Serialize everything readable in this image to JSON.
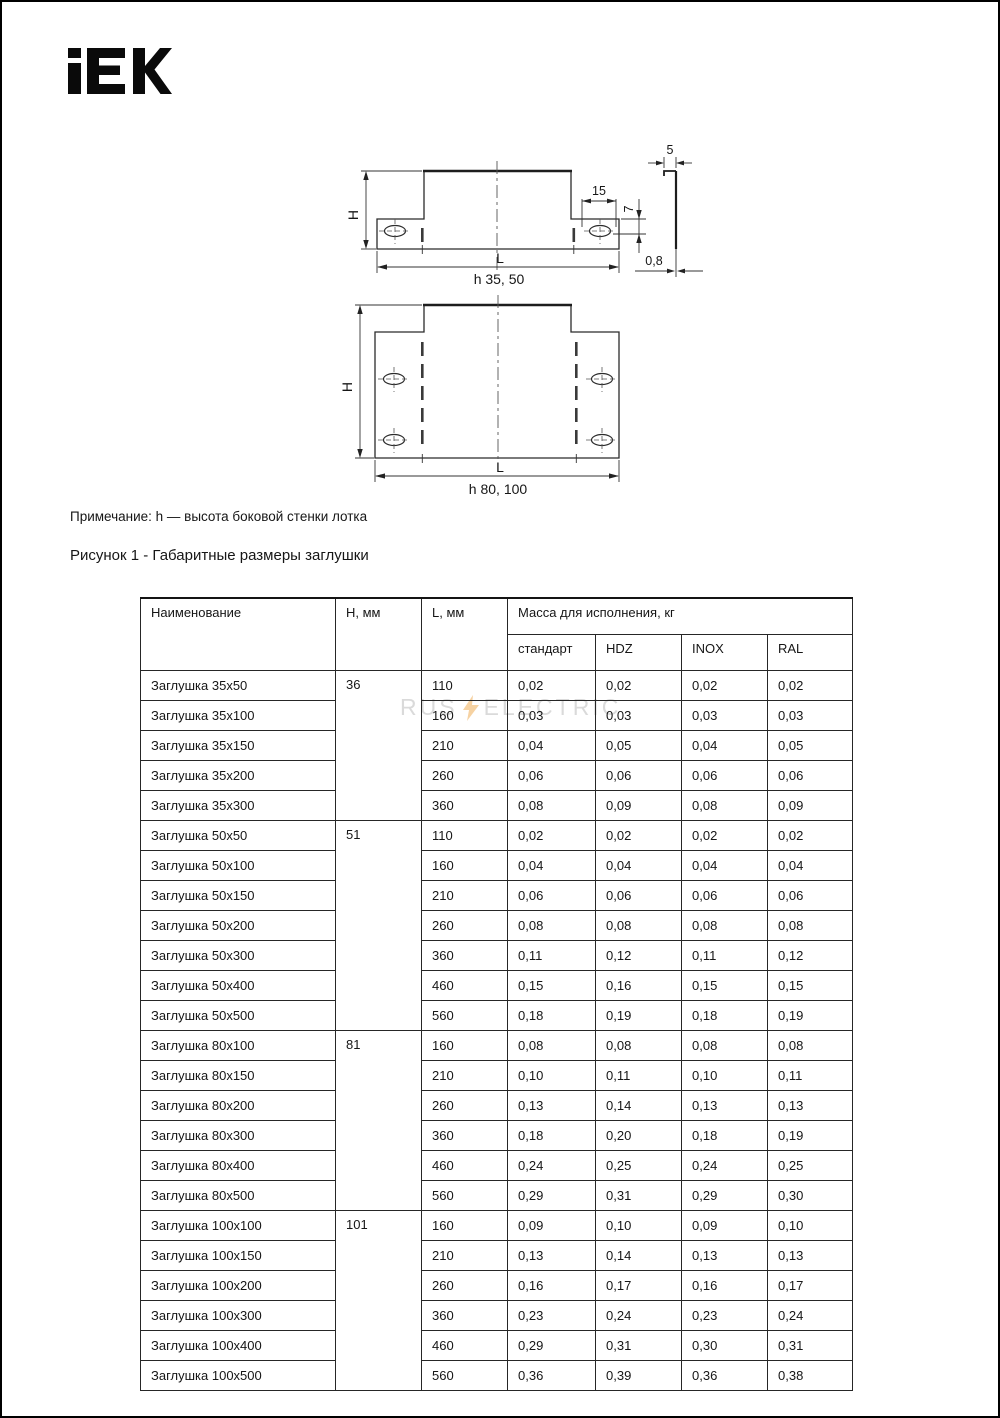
{
  "logo": {
    "brand": "IEK"
  },
  "note": "Примечание: h — высота боковой стенки лотка",
  "figure_caption": "Рисунок 1 - Габаритные размеры заглушки",
  "watermark": {
    "left": "RUS",
    "right": "ELECTRIC",
    "bolt_color": "#eda23f",
    "text_color": "#d2d2d2"
  },
  "drawing": {
    "view1": {
      "h_label": "H",
      "l_label": "L",
      "variant": "h 35, 50",
      "slot_len": "15",
      "slot_offset": "7",
      "lip": "5",
      "thickness": "0,8"
    },
    "view2": {
      "h_label": "H",
      "l_label": "L",
      "variant": "h 80, 100"
    }
  },
  "table": {
    "headers": {
      "name": "Наименование",
      "h": "H, мм",
      "l": "L, мм",
      "mass": "Масса для исполнения, кг",
      "sub": [
        "стандарт",
        "HDZ",
        "INOX",
        "RAL"
      ]
    },
    "groups": [
      {
        "h": "36",
        "rows": [
          {
            "name": "Заглушка 35x50",
            "l": "110",
            "std": "0,02",
            "hdz": "0,02",
            "inox": "0,02",
            "ral": "0,02"
          },
          {
            "name": "Заглушка 35x100",
            "l": "160",
            "std": "0,03",
            "hdz": "0,03",
            "inox": "0,03",
            "ral": "0,03"
          },
          {
            "name": "Заглушка 35x150",
            "l": "210",
            "std": "0,04",
            "hdz": "0,05",
            "inox": "0,04",
            "ral": "0,05"
          },
          {
            "name": "Заглушка 35x200",
            "l": "260",
            "std": "0,06",
            "hdz": "0,06",
            "inox": "0,06",
            "ral": "0,06"
          },
          {
            "name": "Заглушка 35x300",
            "l": "360",
            "std": "0,08",
            "hdz": "0,09",
            "inox": "0,08",
            "ral": "0,09"
          }
        ]
      },
      {
        "h": "51",
        "rows": [
          {
            "name": "Заглушка 50x50",
            "l": "110",
            "std": "0,02",
            "hdz": "0,02",
            "inox": "0,02",
            "ral": "0,02"
          },
          {
            "name": "Заглушка 50x100",
            "l": "160",
            "std": "0,04",
            "hdz": "0,04",
            "inox": "0,04",
            "ral": "0,04"
          },
          {
            "name": "Заглушка 50x150",
            "l": "210",
            "std": "0,06",
            "hdz": "0,06",
            "inox": "0,06",
            "ral": "0,06"
          },
          {
            "name": "Заглушка 50x200",
            "l": "260",
            "std": "0,08",
            "hdz": "0,08",
            "inox": "0,08",
            "ral": "0,08"
          },
          {
            "name": "Заглушка 50x300",
            "l": "360",
            "std": "0,11",
            "hdz": "0,12",
            "inox": "0,11",
            "ral": "0,12"
          },
          {
            "name": "Заглушка 50x400",
            "l": "460",
            "std": "0,15",
            "hdz": "0,16",
            "inox": "0,15",
            "ral": "0,15"
          },
          {
            "name": "Заглушка 50x500",
            "l": "560",
            "std": "0,18",
            "hdz": "0,19",
            "inox": "0,18",
            "ral": "0,19"
          }
        ]
      },
      {
        "h": "81",
        "rows": [
          {
            "name": "Заглушка 80x100",
            "l": "160",
            "std": "0,08",
            "hdz": "0,08",
            "inox": "0,08",
            "ral": "0,08"
          },
          {
            "name": "Заглушка 80x150",
            "l": "210",
            "std": "0,10",
            "hdz": "0,11",
            "inox": "0,10",
            "ral": "0,11"
          },
          {
            "name": "Заглушка 80x200",
            "l": "260",
            "std": "0,13",
            "hdz": "0,14",
            "inox": "0,13",
            "ral": "0,13"
          },
          {
            "name": "Заглушка 80x300",
            "l": "360",
            "std": "0,18",
            "hdz": "0,20",
            "inox": "0,18",
            "ral": "0,19"
          },
          {
            "name": "Заглушка 80x400",
            "l": "460",
            "std": "0,24",
            "hdz": "0,25",
            "inox": "0,24",
            "ral": "0,25"
          },
          {
            "name": "Заглушка 80x500",
            "l": "560",
            "std": "0,29",
            "hdz": "0,31",
            "inox": "0,29",
            "ral": "0,30"
          }
        ]
      },
      {
        "h": "101",
        "rows": [
          {
            "name": "Заглушка 100x100",
            "l": "160",
            "std": "0,09",
            "hdz": "0,10",
            "inox": "0,09",
            "ral": "0,10"
          },
          {
            "name": "Заглушка 100x150",
            "l": "210",
            "std": "0,13",
            "hdz": "0,14",
            "inox": "0,13",
            "ral": "0,13"
          },
          {
            "name": "Заглушка 100x200",
            "l": "260",
            "std": "0,16",
            "hdz": "0,17",
            "inox": "0,16",
            "ral": "0,17"
          },
          {
            "name": "Заглушка 100x300",
            "l": "360",
            "std": "0,23",
            "hdz": "0,24",
            "inox": "0,23",
            "ral": "0,24"
          },
          {
            "name": "Заглушка 100x400",
            "l": "460",
            "std": "0,29",
            "hdz": "0,31",
            "inox": "0,30",
            "ral": "0,31"
          },
          {
            "name": "Заглушка 100x500",
            "l": "560",
            "std": "0,36",
            "hdz": "0,39",
            "inox": "0,36",
            "ral": "0,38"
          }
        ]
      }
    ]
  }
}
